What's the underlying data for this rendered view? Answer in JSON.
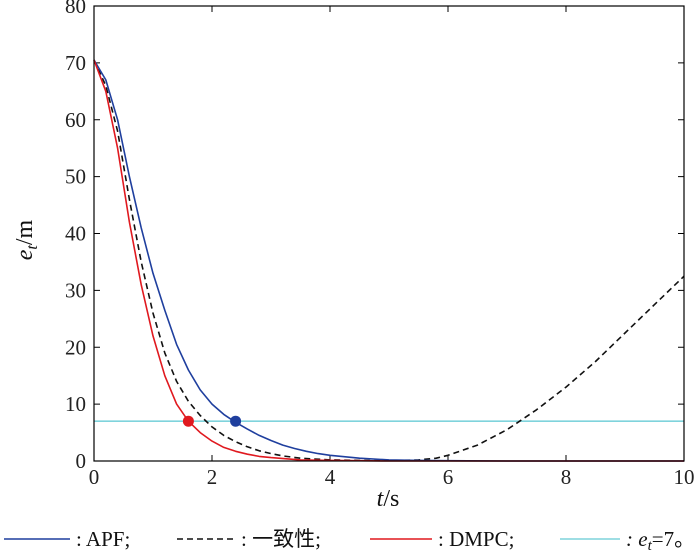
{
  "chart_data": {
    "type": "line",
    "xlabel_var": "t",
    "xlabel_unit": "/s",
    "ylabel_var": "e",
    "ylabel_sub": "t",
    "ylabel_unit": "/m",
    "xlim": [
      0,
      10
    ],
    "ylim": [
      0,
      80
    ],
    "xticks": [
      "0",
      "2",
      "4",
      "6",
      "8",
      "10"
    ],
    "yticks": [
      "0",
      "10",
      "20",
      "30",
      "40",
      "50",
      "60",
      "70",
      "80"
    ],
    "grid": false,
    "legend_position": "bottom",
    "series": [
      {
        "name": "APF",
        "color": "#1f3f9e",
        "dash": "solid",
        "x": [
          0,
          0.2,
          0.4,
          0.6,
          0.8,
          1.0,
          1.2,
          1.4,
          1.6,
          1.8,
          2.0,
          2.2,
          2.4,
          2.6,
          2.8,
          3.0,
          3.2,
          3.4,
          3.6,
          3.8,
          4.0,
          4.5,
          5.0,
          5.5,
          6.0,
          7.0,
          8.0,
          9.0,
          10.0
        ],
        "y": [
          70.5,
          67,
          60,
          50,
          41,
          33,
          26.5,
          20.5,
          16,
          12.5,
          10,
          8.2,
          6.8,
          5.6,
          4.5,
          3.6,
          2.8,
          2.2,
          1.7,
          1.3,
          1.0,
          0.5,
          0.2,
          0.1,
          0.05,
          0,
          0,
          0,
          0
        ]
      },
      {
        "name": "一致性",
        "color": "#111111",
        "dash": "dashed",
        "x": [
          0,
          0.2,
          0.4,
          0.6,
          0.8,
          1.0,
          1.2,
          1.4,
          1.6,
          1.8,
          2.0,
          2.2,
          2.4,
          2.6,
          2.8,
          3.0,
          3.2,
          3.5,
          4.0,
          4.5,
          5.0,
          5.5,
          5.8,
          6.0,
          6.5,
          7.0,
          7.5,
          8.0,
          8.5,
          9.0,
          9.5,
          10.0
        ],
        "y": [
          70.5,
          66,
          58,
          46,
          35,
          26,
          19,
          14,
          10.5,
          8,
          6,
          4.5,
          3.4,
          2.5,
          1.8,
          1.3,
          0.9,
          0.5,
          0.2,
          0.1,
          0.05,
          0.2,
          0.5,
          1.0,
          2.8,
          5.5,
          9.0,
          13.0,
          17.5,
          22.5,
          27.5,
          32.5
        ]
      },
      {
        "name": "DMPC",
        "color": "#e0191f",
        "dash": "solid",
        "x": [
          0,
          0.2,
          0.4,
          0.6,
          0.8,
          1.0,
          1.2,
          1.4,
          1.6,
          1.8,
          2.0,
          2.2,
          2.4,
          2.6,
          2.8,
          3.0,
          3.5,
          4.0,
          4.5,
          5.0,
          6.0,
          8.0,
          10.0
        ],
        "y": [
          70.5,
          65,
          55,
          42,
          31,
          22,
          15,
          10,
          7,
          5,
          3.5,
          2.4,
          1.7,
          1.2,
          0.8,
          0.6,
          0.2,
          0.1,
          0.05,
          0,
          0,
          0,
          0
        ]
      },
      {
        "name": "e_t=7",
        "color": "#7fd3dc",
        "dash": "solid",
        "x": [
          0,
          10
        ],
        "y": [
          7,
          7
        ]
      }
    ],
    "markers": [
      {
        "x": 1.6,
        "y": 7,
        "color": "#e0191f"
      },
      {
        "x": 2.4,
        "y": 7,
        "color": "#1f3f9e"
      }
    ],
    "legend": [
      {
        "label": ": APF;",
        "color": "#1f3f9e",
        "dash": "solid"
      },
      {
        "label": ": 一致性;",
        "color": "#111111",
        "dash": "dashed"
      },
      {
        "label": ": DMPC;",
        "color": "#e0191f",
        "dash": "solid"
      },
      {
        "label_var": ": e",
        "label_sub": "t",
        "label_rest": "=7。",
        "color": "#7fd3dc",
        "dash": "solid"
      }
    ]
  }
}
